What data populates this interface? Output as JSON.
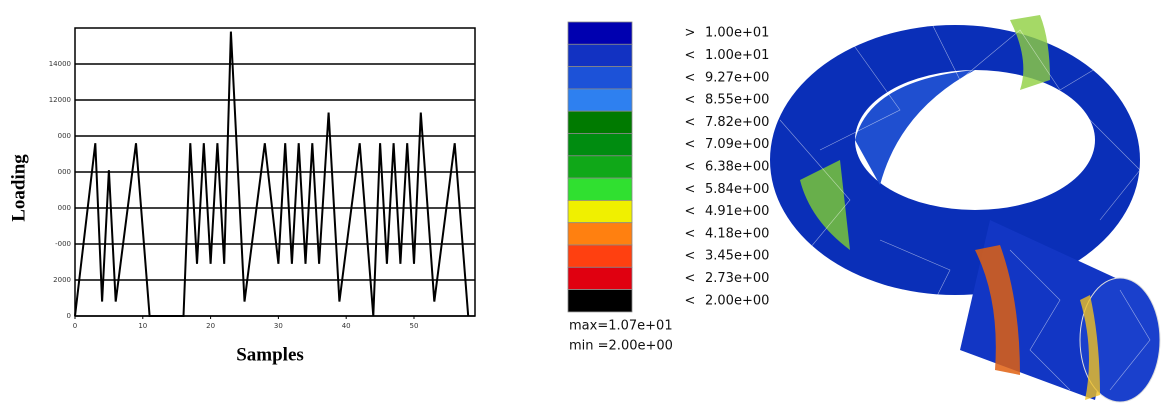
{
  "chart_data": [
    {
      "type": "line",
      "x_label": "Samples",
      "y_label": "Loading",
      "x": [
        0,
        3,
        4,
        5,
        6,
        9,
        11,
        16,
        17,
        18,
        19,
        20,
        21,
        22,
        23,
        25,
        28,
        30,
        31,
        32,
        33,
        34,
        35,
        36,
        37.4,
        39,
        42,
        44,
        45,
        46,
        47,
        48,
        49,
        50,
        51,
        53,
        56,
        58
      ],
      "values": [
        0,
        9600,
        800,
        8100,
        800,
        9600,
        0,
        0,
        9600,
        2900,
        9600,
        2900,
        9600,
        2900,
        15800,
        800,
        9600,
        2900,
        9600,
        2900,
        9600,
        2900,
        9600,
        2900,
        11300,
        800,
        9600,
        0,
        9600,
        2900,
        9600,
        2900,
        9600,
        2900,
        11300,
        800,
        9600,
        0
      ],
      "color": "#000000",
      "xlim": [
        0,
        59
      ],
      "xticks": [
        0,
        10,
        20,
        30,
        40,
        50
      ],
      "ylim": [
        0,
        16000
      ],
      "yticks": [
        0,
        2000,
        {
          "value": 4000,
          "label": "-000"
        },
        {
          "value": 6000,
          "label": "000"
        },
        {
          "value": 8000,
          "label": "000"
        },
        {
          "value": 10000,
          "label": "000"
        },
        12000,
        14000
      ],
      "grid": true
    }
  ],
  "legend": {
    "entries": [
      {
        "sign": ">",
        "value": "1.00e+01",
        "color": "#0000b0"
      },
      {
        "sign": "<",
        "value": "1.00e+01",
        "color": "#1232c2"
      },
      {
        "sign": "<",
        "value": "9.27e+00",
        "color": "#1c52d8"
      },
      {
        "sign": "<",
        "value": "8.55e+00",
        "color": "#2e80f0"
      },
      {
        "sign": "<",
        "value": "7.82e+00",
        "color": "#007a00"
      },
      {
        "sign": "<",
        "value": "7.09e+00",
        "color": "#008c10"
      },
      {
        "sign": "<",
        "value": "6.38e+00",
        "color": "#10a818"
      },
      {
        "sign": "<",
        "value": "5.84e+00",
        "color": "#30e030"
      },
      {
        "sign": "<",
        "value": "4.91e+00",
        "color": "#f0f000"
      },
      {
        "sign": "<",
        "value": "4.18e+00",
        "color": "#ff8010"
      },
      {
        "sign": "<",
        "value": "3.45e+00",
        "color": "#ff4010"
      },
      {
        "sign": "<",
        "value": "2.73e+00",
        "color": "#e00010"
      },
      {
        "sign": "<",
        "value": "2.00e+00",
        "color": "#000000"
      }
    ],
    "max": "max=1.07e+01",
    "min": "min =2.00e+00"
  }
}
